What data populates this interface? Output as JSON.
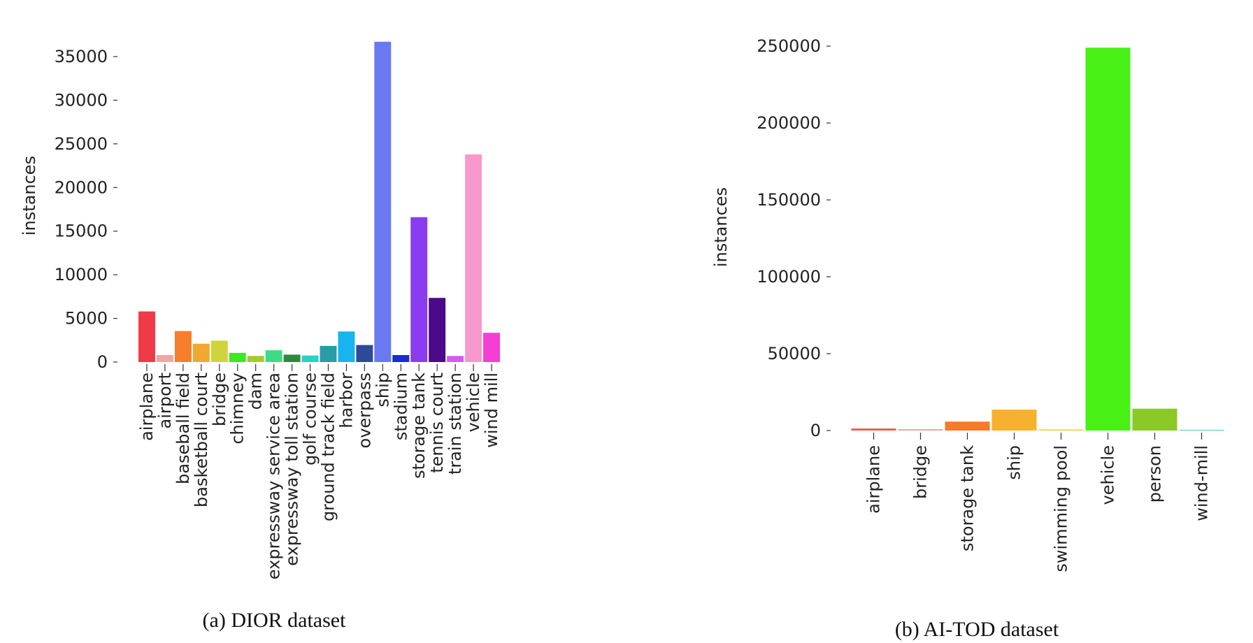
{
  "chart_data": [
    {
      "type": "bar",
      "caption": "(a) DIOR dataset",
      "ylabel": "instances",
      "ylim": [
        0,
        37000
      ],
      "yticks": [
        0,
        5000,
        10000,
        15000,
        20000,
        25000,
        30000,
        35000
      ],
      "grid": false,
      "categories": [
        "airplane",
        "airport",
        "baseball field",
        "basketball court",
        "bridge",
        "chimney",
        "dam",
        "expressway service area",
        "expressway toll station",
        "golf course",
        "ground track field",
        "harbor",
        "overpass",
        "ship",
        "stadium",
        "storage tank",
        "tennis court",
        "train station",
        "vehicle",
        "wind mill"
      ],
      "values": [
        5800,
        800,
        3550,
        2100,
        2450,
        1050,
        700,
        1350,
        850,
        750,
        1850,
        3500,
        1950,
        36700,
        800,
        16600,
        7350,
        700,
        23800,
        3350
      ],
      "colors": [
        "#f03a47",
        "#f5a3a3",
        "#f57f2a",
        "#f0a830",
        "#cfd43c",
        "#3fe820",
        "#a4cc29",
        "#3ddc84",
        "#2b8a3e",
        "#25d4c3",
        "#2a9ca8",
        "#17b4f0",
        "#2d4a9a",
        "#6a78f2",
        "#1a2ad8",
        "#8a3cf0",
        "#4a0a8a",
        "#d45af0",
        "#f799cc",
        "#f53fd4"
      ]
    },
    {
      "type": "bar",
      "caption": "(b) AI-TOD dataset",
      "ylabel": "instances",
      "ylim": [
        0,
        255000
      ],
      "yticks": [
        0,
        50000,
        100000,
        150000,
        200000,
        250000
      ],
      "grid": false,
      "categories": [
        "airplane",
        "bridge",
        "storage tank",
        "ship",
        "swimming pool",
        "vehicle",
        "person",
        "wind-mill"
      ],
      "values": [
        1300,
        900,
        5800,
        13600,
        700,
        249000,
        14200,
        400
      ],
      "colors": [
        "#e85a4f",
        "#f2a0a0",
        "#f57a2a",
        "#f7b12e",
        "#eecb3c",
        "#48f015",
        "#8ac926",
        "#2ec4b6"
      ]
    }
  ]
}
